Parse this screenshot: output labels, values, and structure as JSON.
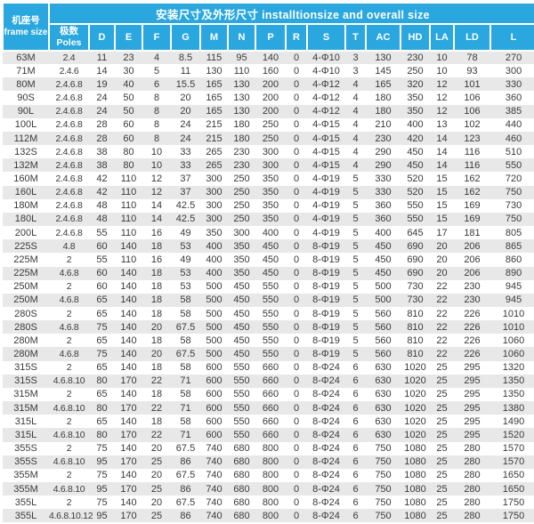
{
  "chart_data": {
    "type": "table",
    "title": "安装尺寸及外形尺寸 installtionsize and overall size",
    "frame_header": {
      "zh": "机座号",
      "en": "frame size"
    },
    "poles_header": {
      "zh": "极数",
      "en": "Poles"
    },
    "columns": [
      "D",
      "E",
      "F",
      "G",
      "M",
      "N",
      "P",
      "R",
      "S",
      "T",
      "AC",
      "HD",
      "LA",
      "LD",
      "L"
    ],
    "rows": [
      {
        "frame": "63M",
        "poles": "2.4",
        "values": [
          "11",
          "23",
          "4",
          "8.5",
          "115",
          "95",
          "140",
          "0",
          "4-Φ10",
          "3",
          "130",
          "230",
          "10",
          "78",
          "270"
        ]
      },
      {
        "frame": "71M",
        "poles": "2.4.6",
        "values": [
          "14",
          "30",
          "5",
          "11",
          "130",
          "110",
          "160",
          "0",
          "4-Φ10",
          "3",
          "145",
          "250",
          "10",
          "93",
          "300"
        ]
      },
      {
        "frame": "80M",
        "poles": "2.4.6.8",
        "values": [
          "19",
          "40",
          "6",
          "15.5",
          "165",
          "130",
          "200",
          "0",
          "4-Φ12",
          "4",
          "165",
          "320",
          "12",
          "101",
          "330"
        ]
      },
      {
        "frame": "90S",
        "poles": "2.4.6.8",
        "values": [
          "24",
          "50",
          "8",
          "20",
          "165",
          "130",
          "200",
          "0",
          "4-Φ12",
          "4",
          "180",
          "350",
          "12",
          "106",
          "360"
        ]
      },
      {
        "frame": "90L",
        "poles": "2.4.6.8",
        "values": [
          "24",
          "50",
          "8",
          "20",
          "165",
          "130",
          "200",
          "0",
          "4-Φ12",
          "4",
          "180",
          "350",
          "12",
          "106",
          "385"
        ]
      },
      {
        "frame": "100L",
        "poles": "2.4.6.8",
        "values": [
          "28",
          "60",
          "8",
          "24",
          "215",
          "180",
          "250",
          "0",
          "4-Φ15",
          "4",
          "210",
          "400",
          "13",
          "102",
          "440"
        ]
      },
      {
        "frame": "112M",
        "poles": "2.4.6.8",
        "values": [
          "28",
          "60",
          "8",
          "24",
          "215",
          "180",
          "250",
          "0",
          "4-Φ15",
          "4",
          "230",
          "420",
          "14",
          "123",
          "460"
        ]
      },
      {
        "frame": "132S",
        "poles": "2.4.6.8",
        "values": [
          "38",
          "80",
          "10",
          "33",
          "265",
          "230",
          "300",
          "0",
          "4-Φ15",
          "4",
          "290",
          "450",
          "14",
          "116",
          "510"
        ]
      },
      {
        "frame": "132M",
        "poles": "2.4.6.8",
        "values": [
          "38",
          "80",
          "10",
          "33",
          "265",
          "230",
          "300",
          "0",
          "4-Φ15",
          "4",
          "290",
          "450",
          "14",
          "116",
          "550"
        ]
      },
      {
        "frame": "160M",
        "poles": "2.4.6.8",
        "values": [
          "42",
          "110",
          "12",
          "37",
          "300",
          "250",
          "350",
          "0",
          "4-Φ19",
          "5",
          "330",
          "520",
          "15",
          "162",
          "720"
        ]
      },
      {
        "frame": "160L",
        "poles": "2.4.6.8",
        "values": [
          "42",
          "110",
          "12",
          "37",
          "300",
          "250",
          "350",
          "0",
          "4-Φ19",
          "5",
          "330",
          "520",
          "15",
          "162",
          "750"
        ]
      },
      {
        "frame": "180M",
        "poles": "2.4.6.8",
        "values": [
          "48",
          "110",
          "14",
          "42.5",
          "300",
          "250",
          "350",
          "0",
          "4-Φ19",
          "5",
          "360",
          "550",
          "15",
          "169",
          "730"
        ]
      },
      {
        "frame": "180L",
        "poles": "2.4.6.8",
        "values": [
          "48",
          "110",
          "14",
          "42.5",
          "300",
          "250",
          "350",
          "0",
          "4-Φ19",
          "5",
          "360",
          "550",
          "15",
          "169",
          "750"
        ]
      },
      {
        "frame": "200L",
        "poles": "2.4.6.8",
        "values": [
          "55",
          "110",
          "16",
          "49",
          "350",
          "300",
          "400",
          "0",
          "4-Φ19",
          "5",
          "400",
          "645",
          "17",
          "181",
          "805"
        ]
      },
      {
        "frame": "225S",
        "poles": "4.8",
        "values": [
          "60",
          "140",
          "18",
          "53",
          "400",
          "350",
          "450",
          "0",
          "8-Φ19",
          "5",
          "450",
          "690",
          "20",
          "206",
          "865"
        ]
      },
      {
        "frame": "225M",
        "poles": "2",
        "values": [
          "55",
          "110",
          "16",
          "49",
          "400",
          "350",
          "450",
          "0",
          "8-Φ19",
          "5",
          "450",
          "690",
          "20",
          "206",
          "860"
        ]
      },
      {
        "frame": "225M",
        "poles": "4.6.8",
        "values": [
          "60",
          "140",
          "18",
          "53",
          "400",
          "350",
          "450",
          "0",
          "8-Φ19",
          "5",
          "450",
          "690",
          "20",
          "206",
          "890"
        ]
      },
      {
        "frame": "250M",
        "poles": "2",
        "values": [
          "60",
          "140",
          "18",
          "53",
          "500",
          "450",
          "550",
          "0",
          "8-Φ19",
          "5",
          "500",
          "730",
          "22",
          "230",
          "945"
        ]
      },
      {
        "frame": "250M",
        "poles": "4.6.8",
        "values": [
          "65",
          "140",
          "18",
          "58",
          "500",
          "450",
          "550",
          "0",
          "8-Φ19",
          "5",
          "500",
          "730",
          "22",
          "230",
          "945"
        ]
      },
      {
        "frame": "280S",
        "poles": "2",
        "values": [
          "65",
          "140",
          "18",
          "58",
          "500",
          "450",
          "550",
          "0",
          "8-Φ19",
          "5",
          "560",
          "810",
          "22",
          "226",
          "1010"
        ]
      },
      {
        "frame": "280S",
        "poles": "4.6.8",
        "values": [
          "75",
          "140",
          "20",
          "67.5",
          "500",
          "450",
          "550",
          "0",
          "8-Φ19",
          "5",
          "560",
          "810",
          "22",
          "226",
          "1010"
        ]
      },
      {
        "frame": "280M",
        "poles": "2",
        "values": [
          "65",
          "140",
          "18",
          "58",
          "500",
          "450",
          "550",
          "0",
          "8-Φ19",
          "5",
          "560",
          "810",
          "22",
          "226",
          "1060"
        ]
      },
      {
        "frame": "280M",
        "poles": "4.6.8",
        "values": [
          "75",
          "140",
          "20",
          "67.5",
          "500",
          "450",
          "550",
          "0",
          "8-Φ19",
          "5",
          "560",
          "810",
          "22",
          "226",
          "1060"
        ]
      },
      {
        "frame": "315S",
        "poles": "2",
        "values": [
          "65",
          "140",
          "18",
          "58",
          "600",
          "550",
          "660",
          "0",
          "8-Φ24",
          "6",
          "630",
          "1020",
          "25",
          "295",
          "1320"
        ]
      },
      {
        "frame": "315S",
        "poles": "4.6.8.10",
        "values": [
          "80",
          "170",
          "22",
          "71",
          "600",
          "550",
          "660",
          "0",
          "8-Φ24",
          "6",
          "630",
          "1020",
          "25",
          "295",
          "1350"
        ]
      },
      {
        "frame": "315M",
        "poles": "2",
        "values": [
          "65",
          "140",
          "18",
          "58",
          "600",
          "550",
          "660",
          "0",
          "8-Φ24",
          "6",
          "630",
          "1020",
          "25",
          "295",
          "1350"
        ]
      },
      {
        "frame": "315M",
        "poles": "4.6.8.10",
        "values": [
          "80",
          "170",
          "22",
          "71",
          "600",
          "550",
          "660",
          "0",
          "8-Φ24",
          "6",
          "630",
          "1020",
          "25",
          "295",
          "1380"
        ]
      },
      {
        "frame": "315L",
        "poles": "2",
        "values": [
          "65",
          "140",
          "18",
          "58",
          "600",
          "550",
          "660",
          "0",
          "8-Φ24",
          "6",
          "630",
          "1020",
          "25",
          "295",
          "1490"
        ]
      },
      {
        "frame": "315L",
        "poles": "4.6.8.10",
        "values": [
          "80",
          "170",
          "22",
          "71",
          "600",
          "550",
          "660",
          "0",
          "8-Φ24",
          "6",
          "630",
          "1020",
          "25",
          "295",
          "1520"
        ]
      },
      {
        "frame": "355S",
        "poles": "2",
        "values": [
          "75",
          "140",
          "20",
          "67.5",
          "740",
          "680",
          "800",
          "0",
          "8-Φ24",
          "6",
          "750",
          "1080",
          "25",
          "280",
          "1570"
        ]
      },
      {
        "frame": "355S",
        "poles": "4.6.8.10",
        "values": [
          "95",
          "170",
          "25",
          "86",
          "740",
          "680",
          "800",
          "0",
          "8-Φ24",
          "6",
          "750",
          "1080",
          "25",
          "280",
          "1570"
        ]
      },
      {
        "frame": "355M",
        "poles": "2",
        "values": [
          "75",
          "140",
          "20",
          "67.5",
          "740",
          "680",
          "800",
          "0",
          "8-Φ24",
          "6",
          "750",
          "1080",
          "25",
          "280",
          "1650"
        ]
      },
      {
        "frame": "355M",
        "poles": "4.6.8.10",
        "values": [
          "95",
          "170",
          "25",
          "86",
          "740",
          "680",
          "800",
          "0",
          "8-Φ24",
          "6",
          "750",
          "1080",
          "25",
          "280",
          "1650"
        ]
      },
      {
        "frame": "355L",
        "poles": "2",
        "values": [
          "75",
          "140",
          "20",
          "67.5",
          "740",
          "680",
          "800",
          "0",
          "8-Φ24",
          "6",
          "750",
          "1080",
          "25",
          "280",
          "1750"
        ]
      },
      {
        "frame": "355L",
        "poles": "4.6.8.10.12",
        "values": [
          "95",
          "170",
          "25",
          "86",
          "740",
          "680",
          "800",
          "0",
          "8-Φ24",
          "6",
          "750",
          "1080",
          "25",
          "280",
          "1750"
        ]
      }
    ]
  },
  "colors": {
    "header_bg": "#2aa7de",
    "row_alt_bg": "#e8e8e8",
    "row_bg": "#ffffff",
    "header_text": "#ffffff",
    "body_text": "#3a3a3a"
  }
}
